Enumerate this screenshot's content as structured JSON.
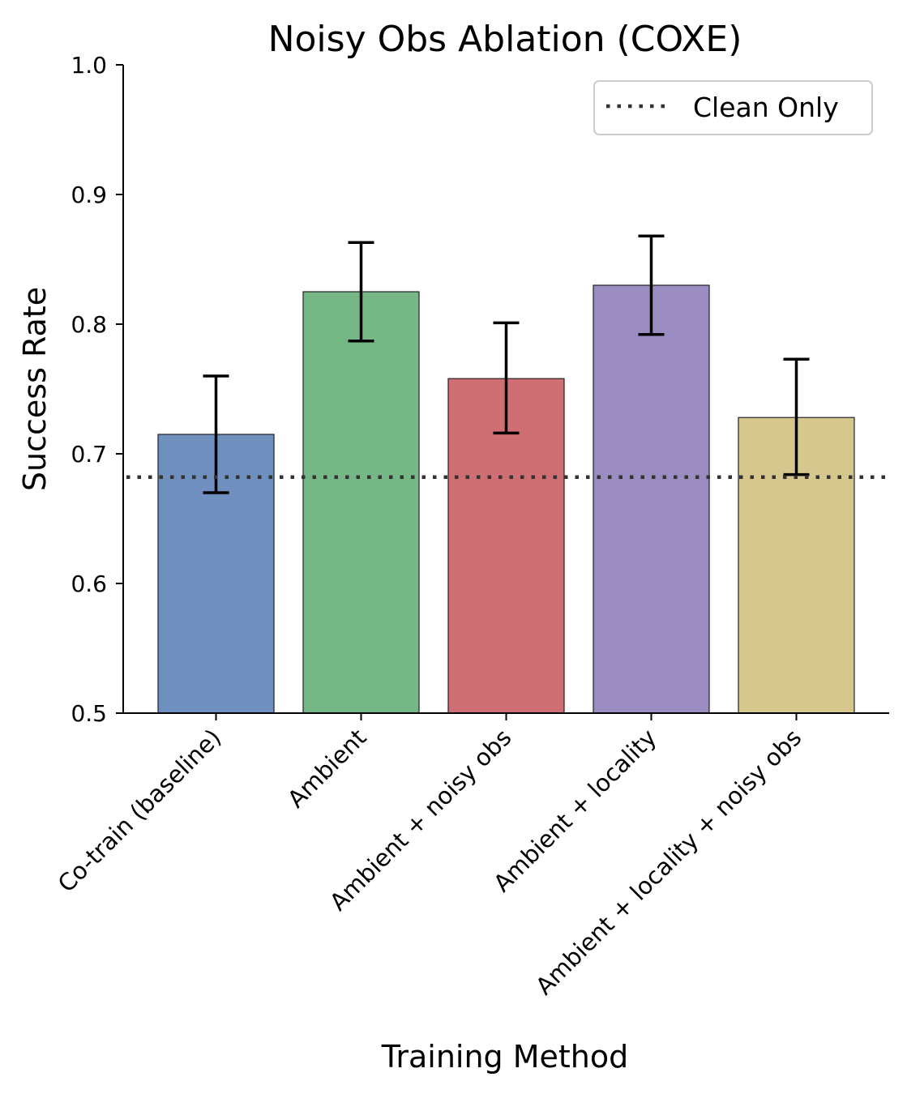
{
  "chart_data": {
    "type": "bar",
    "title": "Noisy Obs Ablation (COXE)",
    "xlabel": "Training Method",
    "ylabel": "Success Rate",
    "ylim": [
      0.5,
      1.0
    ],
    "yticks": [
      0.5,
      0.6,
      0.7,
      0.8,
      0.9,
      1.0
    ],
    "ytick_labels": [
      "0.5",
      "0.6",
      "0.7",
      "0.8",
      "0.9",
      "1.0"
    ],
    "categories": [
      "Co-train (baseline)",
      "Ambient",
      "Ambient + noisy obs",
      "Ambient + locality",
      "Ambient + locality + noisy obs"
    ],
    "values": [
      0.715,
      0.825,
      0.758,
      0.83,
      0.728
    ],
    "error_low": [
      0.67,
      0.787,
      0.716,
      0.792,
      0.684
    ],
    "error_high": [
      0.76,
      0.863,
      0.801,
      0.868,
      0.773
    ],
    "colors": [
      "#6f8fbf",
      "#76b786",
      "#cf6f73",
      "#9b8dc2",
      "#d6c78f"
    ],
    "reference_line": {
      "label": "Clean Only",
      "value": 0.682,
      "style": "dotted",
      "color": "#333333"
    },
    "legend": {
      "position": "top-right",
      "entries": [
        "Clean Only"
      ]
    },
    "grid": false
  }
}
